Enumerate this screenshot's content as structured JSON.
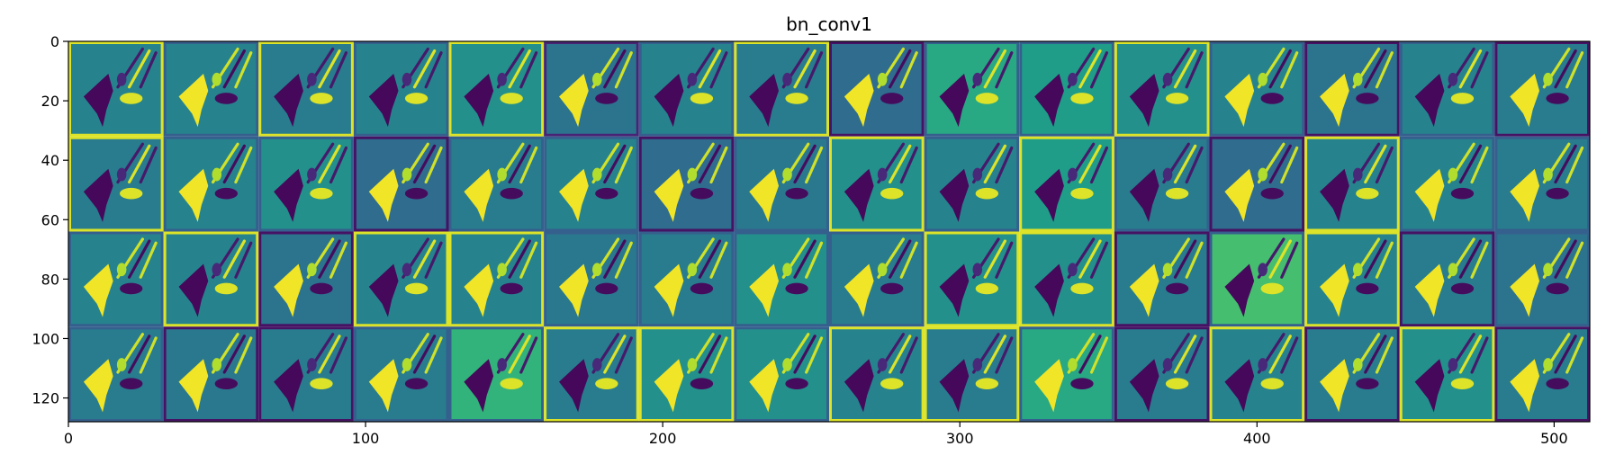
{
  "chart_data": {
    "type": "heatmap",
    "title": "bn_conv1",
    "colormap": "viridis",
    "grid": false,
    "xlim": [
      0,
      512
    ],
    "ylim": [
      128,
      0
    ],
    "x_ticks": [
      0,
      100,
      200,
      300,
      400,
      500
    ],
    "y_ticks": [
      0,
      20,
      40,
      60,
      80,
      100,
      120
    ],
    "x_tick_labels": [
      "0",
      "100",
      "200",
      "300",
      "400",
      "500"
    ],
    "y_tick_labels": [
      "0",
      "20",
      "40",
      "60",
      "80",
      "100",
      "120"
    ],
    "grid_rows": 4,
    "grid_cols": 16,
    "tile_size": 32,
    "tile_polarity": [
      [
        -1,
        1,
        -1,
        -1,
        -1,
        1,
        -1,
        -1,
        1,
        -1,
        -1,
        -1,
        1,
        1,
        -1,
        1
      ],
      [
        -1,
        1,
        -1,
        1,
        1,
        1,
        1,
        1,
        -1,
        -1,
        -1,
        -1,
        1,
        -1,
        1,
        1
      ],
      [
        1,
        -1,
        1,
        -1,
        1,
        1,
        1,
        1,
        1,
        -1,
        -1,
        1,
        -1,
        1,
        1,
        1
      ],
      [
        1,
        1,
        -1,
        1,
        -1,
        -1,
        1,
        1,
        -1,
        -1,
        1,
        -1,
        -1,
        1,
        -1,
        1
      ]
    ],
    "tile_background": [
      [
        0.45,
        0.45,
        0.42,
        0.45,
        0.5,
        0.38,
        0.45,
        0.42,
        0.35,
        0.6,
        0.55,
        0.5,
        0.45,
        0.38,
        0.45,
        0.42
      ],
      [
        0.42,
        0.45,
        0.5,
        0.35,
        0.42,
        0.45,
        0.35,
        0.4,
        0.5,
        0.45,
        0.55,
        0.42,
        0.35,
        0.45,
        0.45,
        0.42
      ],
      [
        0.45,
        0.45,
        0.38,
        0.45,
        0.45,
        0.4,
        0.42,
        0.5,
        0.42,
        0.5,
        0.5,
        0.42,
        0.7,
        0.45,
        0.42,
        0.38
      ],
      [
        0.42,
        0.4,
        0.42,
        0.42,
        0.65,
        0.42,
        0.5,
        0.5,
        0.45,
        0.42,
        0.6,
        0.42,
        0.45,
        0.42,
        0.5,
        0.42
      ]
    ],
    "tile_border": [
      [
        0.95,
        0.3,
        0.95,
        0.3,
        0.95,
        0.1,
        0.3,
        0.95,
        0.05,
        0.3,
        0.3,
        0.95,
        0.3,
        0.05,
        0.3,
        0.05
      ],
      [
        0.95,
        0.3,
        0.3,
        0.05,
        0.3,
        0.3,
        0.05,
        0.3,
        0.95,
        0.3,
        0.95,
        0.3,
        0.05,
        0.95,
        0.3,
        0.3
      ],
      [
        0.3,
        0.95,
        0.05,
        0.95,
        0.95,
        0.3,
        0.3,
        0.3,
        0.3,
        0.95,
        0.95,
        0.05,
        0.3,
        0.95,
        0.05,
        0.3
      ],
      [
        0.3,
        0.05,
        0.05,
        0.3,
        0.3,
        0.95,
        0.95,
        0.3,
        0.95,
        0.95,
        0.3,
        0.05,
        0.95,
        0.05,
        0.95,
        0.05
      ]
    ]
  }
}
